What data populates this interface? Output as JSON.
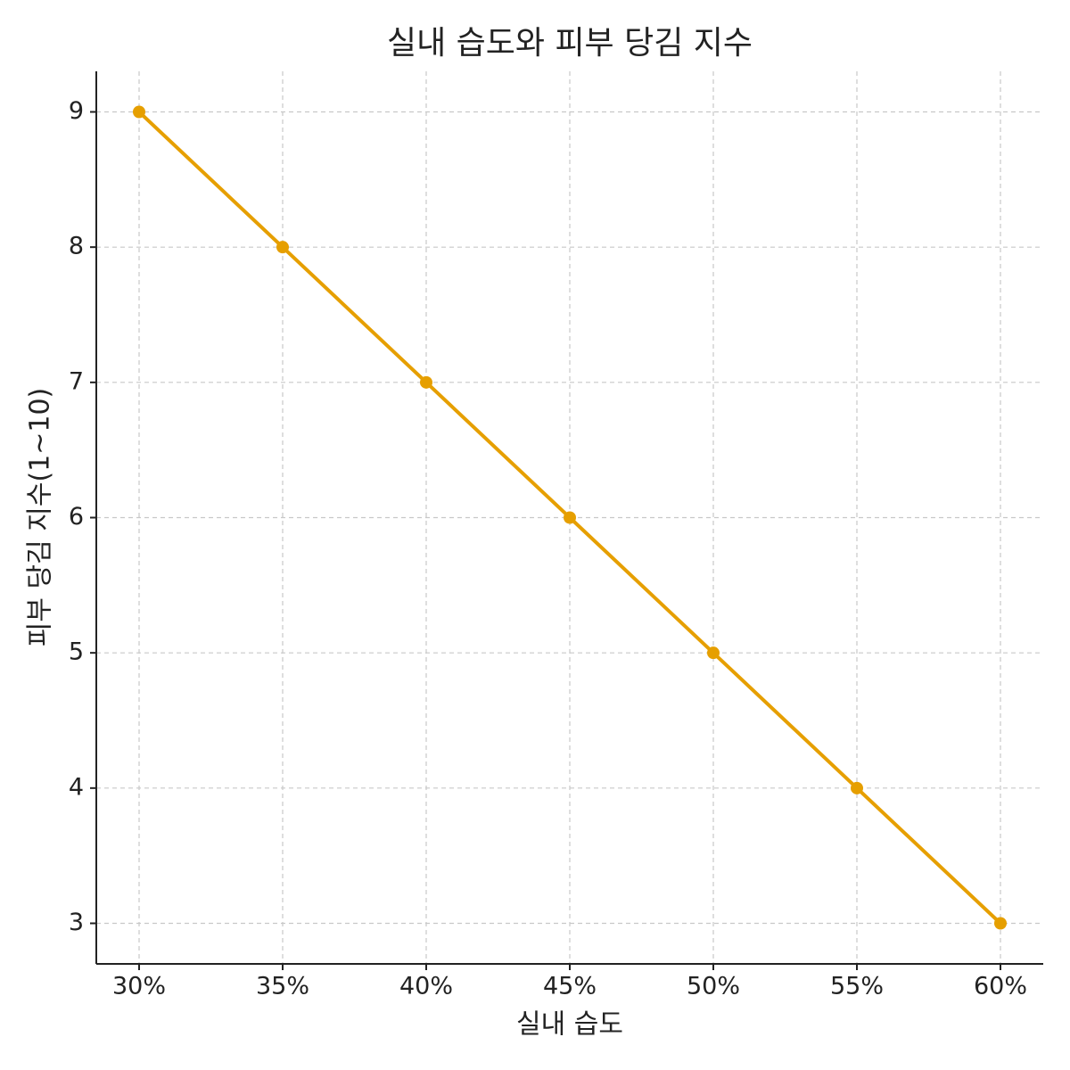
{
  "chart_data": {
    "type": "line",
    "title": "실내 습도와 피부 당김 지수",
    "x_label": "실내 습도",
    "y_label": "피부 당김 지수(1~10)",
    "categories": [
      "30%",
      "35%",
      "40%",
      "45%",
      "50%",
      "55%",
      "60%"
    ],
    "series": [
      {
        "name": "피부 당김 지수",
        "color": "#e69f00",
        "values": [
          9,
          8,
          7,
          6,
          5,
          4,
          3
        ]
      }
    ],
    "ylim": [
      2.7,
      9.3
    ],
    "yticks": [
      3,
      4,
      5,
      6,
      7,
      8,
      9
    ],
    "grid": true
  }
}
